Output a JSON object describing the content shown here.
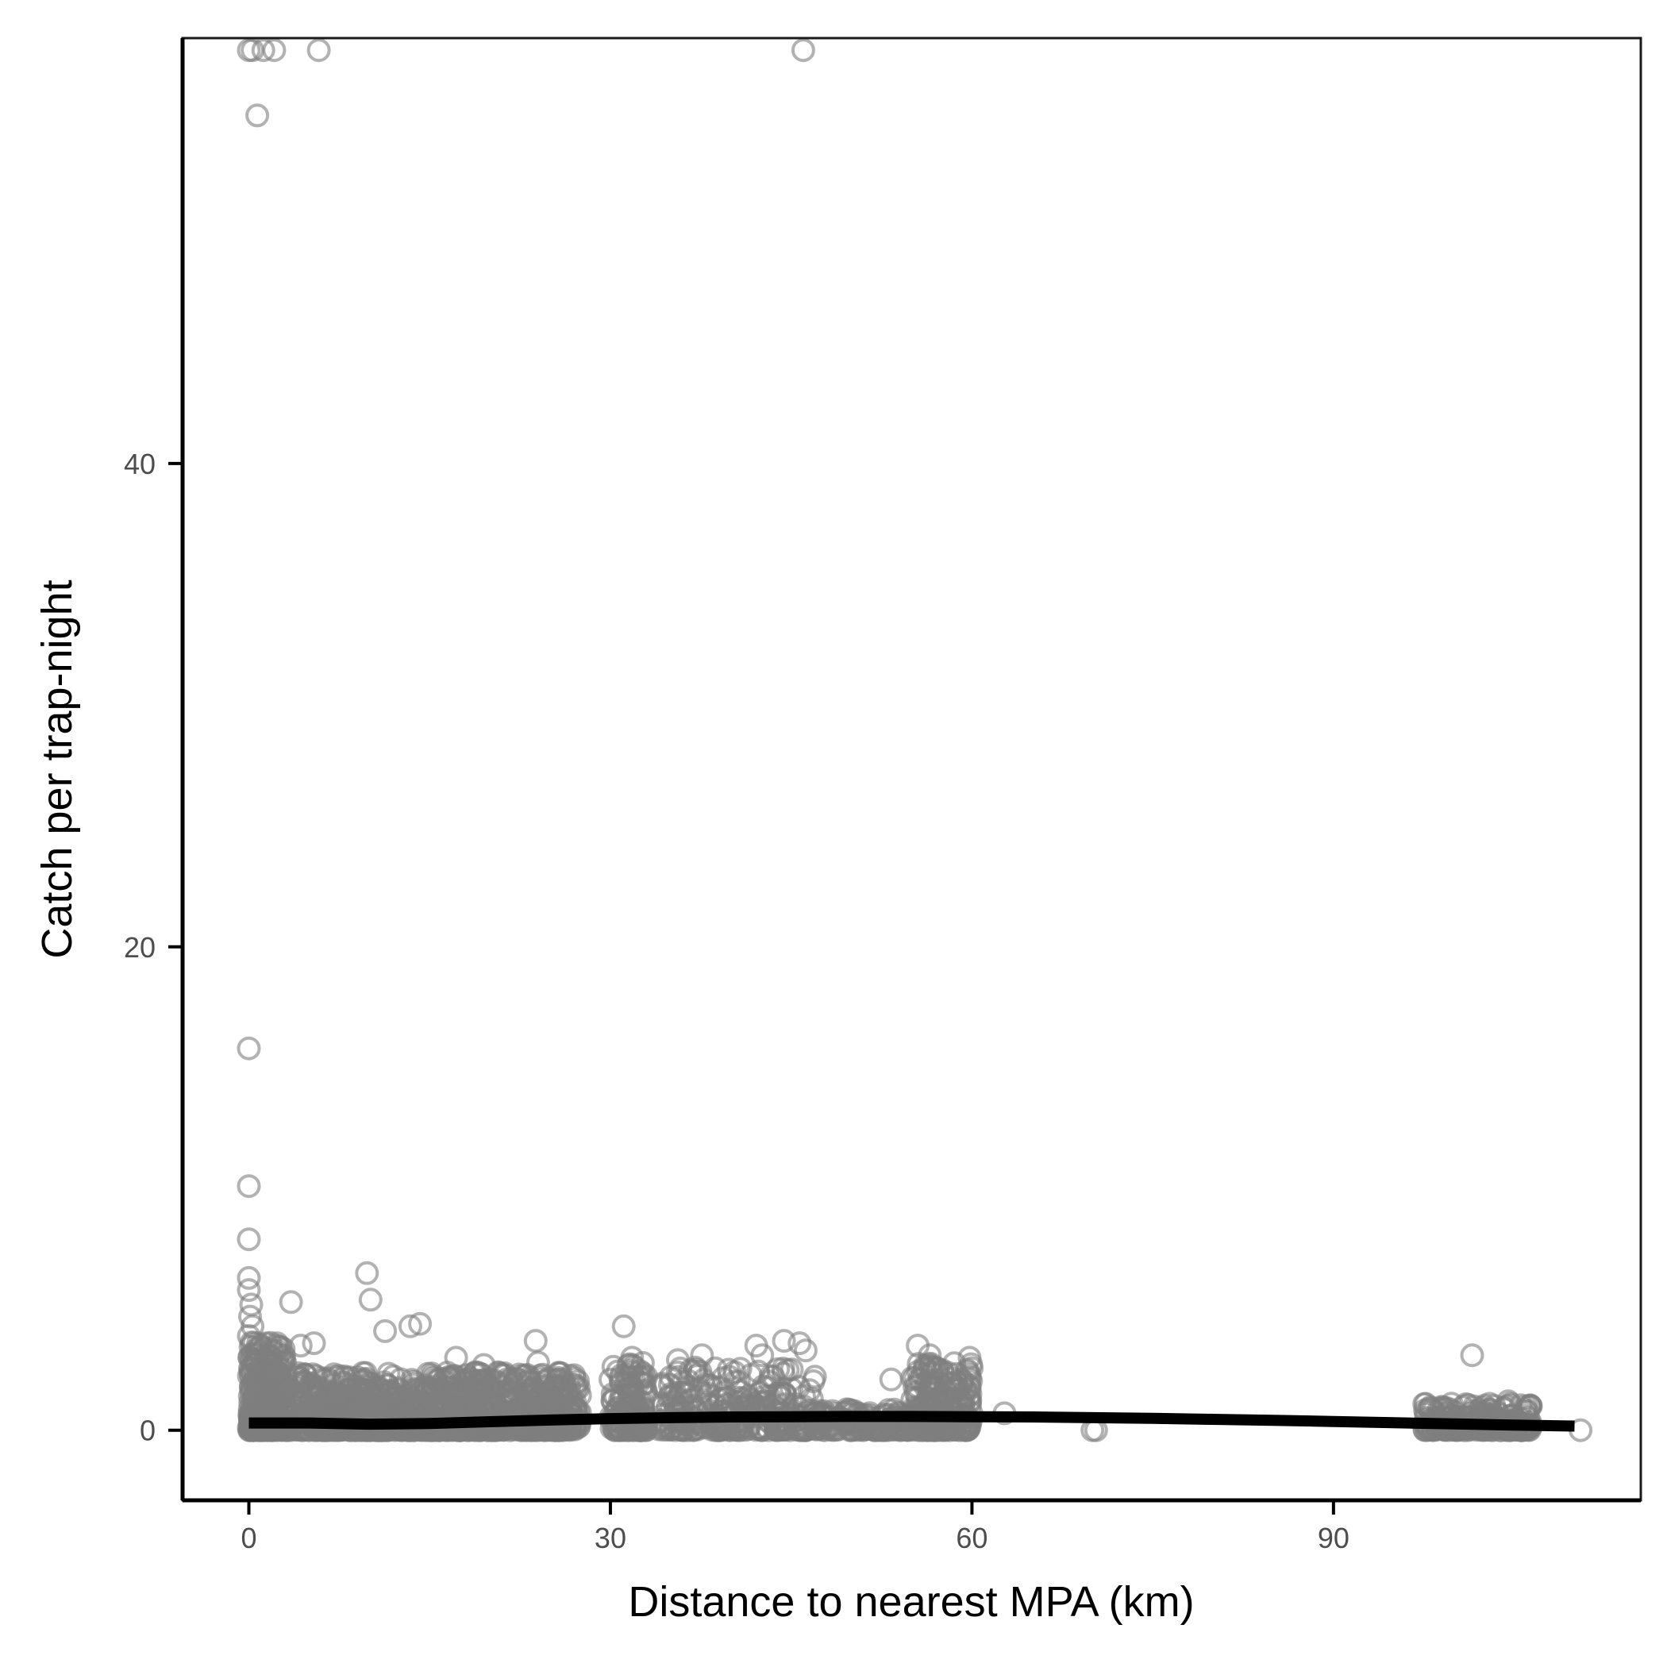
{
  "chart_data": {
    "type": "scatter",
    "xlabel": "Distance to nearest MPA (km)",
    "ylabel": "Catch per trap-night",
    "xlim": [
      -5.5,
      115.5
    ],
    "ylim": [
      -2.9,
      57.6
    ],
    "x_ticks": [
      0,
      30,
      60,
      90
    ],
    "y_ticks": [
      0,
      20,
      40
    ],
    "grid": false,
    "legend": "none",
    "point_color": "#7f7f7f",
    "line_color": "#000000",
    "series": [
      {
        "type": "scatter",
        "points": [
          [
            0,
            57.1
          ],
          [
            0.3,
            57.1
          ],
          [
            1.2,
            57.1
          ],
          [
            2.1,
            57.1
          ],
          [
            5.8,
            57.1
          ],
          [
            46,
            57.1
          ],
          [
            0.7,
            54.4
          ],
          [
            0,
            15.8
          ],
          [
            0,
            10.1
          ],
          [
            0,
            7.9
          ],
          [
            0,
            6.3
          ],
          [
            0,
            5.8
          ],
          [
            0.2,
            5.2
          ],
          [
            0.1,
            4.7
          ],
          [
            0.3,
            4.3
          ],
          [
            0,
            3.9
          ],
          [
            3.5,
            5.3
          ],
          [
            9.8,
            6.5
          ],
          [
            10.1,
            5.4
          ],
          [
            11.3,
            4.1
          ],
          [
            13.4,
            4.3
          ],
          [
            14.2,
            4.4
          ],
          [
            5.4,
            3.6
          ],
          [
            4.3,
            3.5
          ],
          [
            23.8,
            3.7
          ],
          [
            31.1,
            4.3
          ],
          [
            31.8,
            3
          ],
          [
            24,
            2.8
          ],
          [
            17.2,
            3
          ],
          [
            19.5,
            2.7
          ],
          [
            25.6,
            2.1
          ],
          [
            35.6,
            2.9
          ],
          [
            37.6,
            3.1
          ],
          [
            40.3,
            2.4
          ],
          [
            42.1,
            3.5
          ],
          [
            42.6,
            3.1
          ],
          [
            44.4,
            3.7
          ],
          [
            45.7,
            3.6
          ],
          [
            46.2,
            3.3
          ],
          [
            55.5,
            3.5
          ],
          [
            56.5,
            3.1
          ],
          [
            59.8,
            3
          ],
          [
            53.3,
            2.1
          ],
          [
            62.7,
            0.7
          ],
          [
            70,
            0
          ],
          [
            70.3,
            0
          ],
          [
            101.5,
            3.1
          ],
          [
            99.8,
            1.1
          ],
          [
            104.5,
            1.2
          ],
          [
            110.5,
            0
          ],
          [
            35.3,
            0.1
          ],
          [
            46.5,
            0.3
          ]
        ]
      },
      {
        "type": "scatter",
        "points": [],
        "clusters": [
          {
            "x": [
              0,
              27.5
            ],
            "y": [
              0,
              2.4
            ],
            "count": 1400
          },
          {
            "x": [
              0,
              3
            ],
            "y": [
              0,
              3.8
            ],
            "count": 250
          },
          {
            "x": [
              30,
              33
            ],
            "y": [
              0,
              2.8
            ],
            "count": 150
          },
          {
            "x": [
              34,
              47
            ],
            "y": [
              0,
              2.6
            ],
            "count": 300
          },
          {
            "x": [
              47,
              55
            ],
            "y": [
              0,
              0.9
            ],
            "count": 150
          },
          {
            "x": [
              55,
              60
            ],
            "y": [
              0,
              2.8
            ],
            "count": 250
          },
          {
            "x": [
              97.5,
              106.5
            ],
            "y": [
              0,
              1.1
            ],
            "count": 250
          }
        ]
      },
      {
        "type": "line",
        "points": [
          [
            0,
            0.3
          ],
          [
            5,
            0.3
          ],
          [
            10,
            0.25
          ],
          [
            15,
            0.28
          ],
          [
            20,
            0.35
          ],
          [
            25,
            0.42
          ],
          [
            30,
            0.48
          ],
          [
            35,
            0.52
          ],
          [
            40,
            0.55
          ],
          [
            45,
            0.56
          ],
          [
            50,
            0.57
          ],
          [
            55,
            0.57
          ],
          [
            60,
            0.56
          ],
          [
            65,
            0.55
          ],
          [
            70,
            0.52
          ],
          [
            75,
            0.49
          ],
          [
            80,
            0.45
          ],
          [
            85,
            0.41
          ],
          [
            90,
            0.36
          ],
          [
            95,
            0.31
          ],
          [
            100,
            0.26
          ],
          [
            105,
            0.21
          ],
          [
            110,
            0.17
          ]
        ]
      }
    ]
  }
}
